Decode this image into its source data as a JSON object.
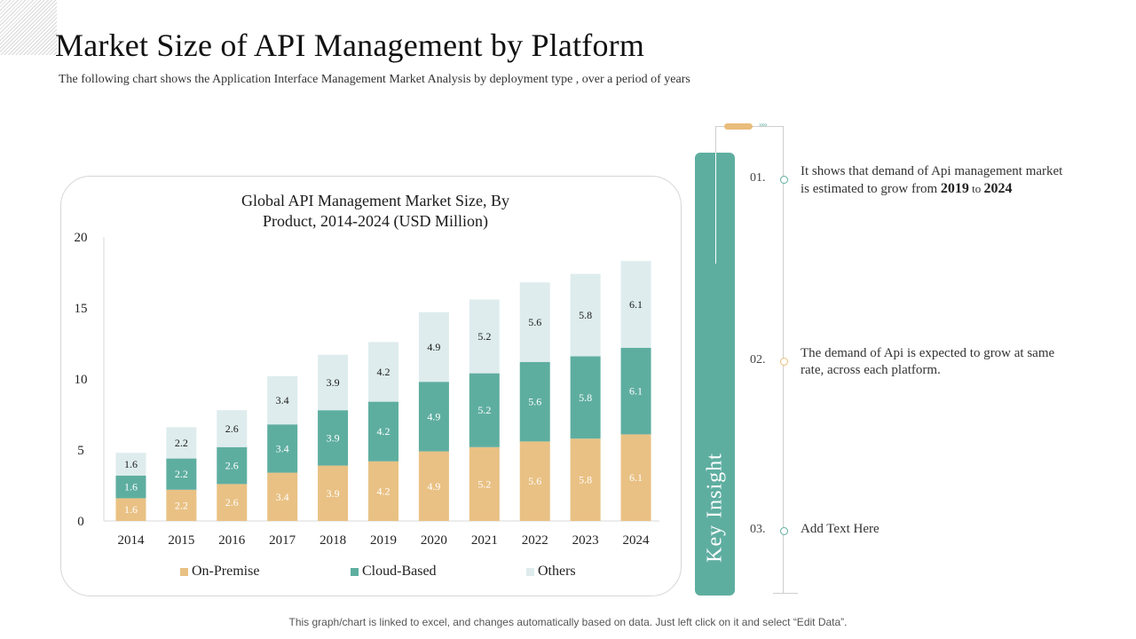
{
  "header": {
    "title": "Market Size of API Management by Platform",
    "subtitle": "The following chart shows the Application Interface Management Market Analysis by deployment type , over a period of years"
  },
  "colors": {
    "on_premise": "#e9c184",
    "cloud_based": "#5eaea0",
    "others": "#deeced",
    "accent_pill": "#e9bd7c",
    "insight_bar": "#5eaea0"
  },
  "chart_data": {
    "type": "bar",
    "stacked": true,
    "title": "Global API Management Market Size, By Product, 2014-2024 (USD Million)",
    "title_lines": [
      "Global API Management Market Size, By",
      "Product, 2014-2024 (USD Million)"
    ],
    "xlabel": "",
    "ylabel": "",
    "ylim": [
      0,
      20
    ],
    "yticks": [
      0,
      5,
      10,
      15,
      20
    ],
    "grid": false,
    "legend_position": "bottom",
    "categories": [
      "2014",
      "2015",
      "2016",
      "2017",
      "2018",
      "2019",
      "2020",
      "2021",
      "2022",
      "2023",
      "2024"
    ],
    "series": [
      {
        "name": "On-Premise",
        "values": [
          1.6,
          2.2,
          2.6,
          3.4,
          3.9,
          4.2,
          4.9,
          5.2,
          5.6,
          5.8,
          6.1
        ]
      },
      {
        "name": "Cloud-Based",
        "values": [
          1.6,
          2.2,
          2.6,
          3.4,
          3.9,
          4.2,
          4.9,
          5.2,
          5.6,
          5.8,
          6.1
        ]
      },
      {
        "name": "Others",
        "values": [
          1.6,
          2.2,
          2.6,
          3.4,
          3.9,
          4.2,
          4.9,
          5.2,
          5.6,
          5.8,
          6.1
        ]
      }
    ]
  },
  "insights": {
    "label": "Key Insight",
    "items": [
      {
        "number": "01.",
        "text_pre": "It shows  that demand of Api management market is estimated to grow from ",
        "bold1": "2019",
        "mid": " to ",
        "bold2": "2024"
      },
      {
        "number": "02.",
        "text": "The demand of Api is expected to grow at same rate, across each platform."
      },
      {
        "number": "03.",
        "text": "Add Text Here"
      }
    ]
  },
  "footer": {
    "note": "This graph/chart is linked to excel,  and changes automatically based on data. Just left click on it and select “Edit Data”."
  }
}
